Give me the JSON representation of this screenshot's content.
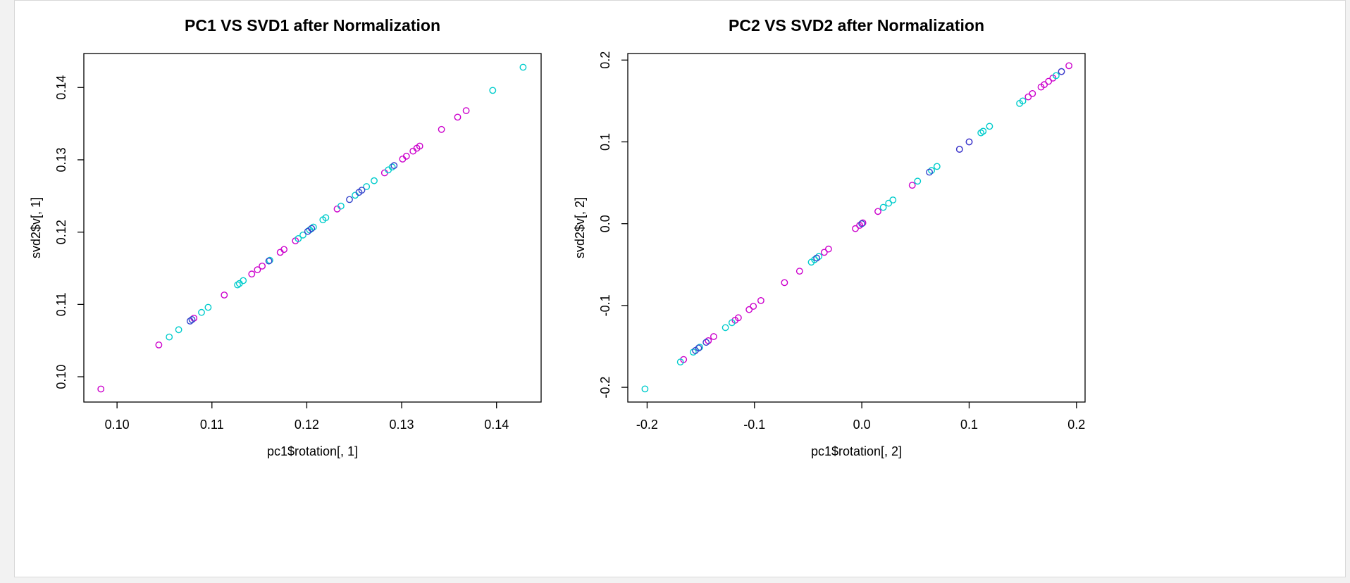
{
  "chart_data": [
    {
      "type": "scatter",
      "title": "PC1 VS SVD1 after Normalization",
      "xlabel": "pc1$rotation[, 1]",
      "ylabel": "svd2$v[, 1]",
      "xlim": [
        0.0965,
        0.1447
      ],
      "ylim": [
        0.0965,
        0.1447
      ],
      "xticks": [
        0.1,
        0.11,
        0.12,
        0.13,
        0.14
      ],
      "xtick_labels": [
        "0.10",
        "0.11",
        "0.12",
        "0.13",
        "0.14"
      ],
      "yticks": [
        0.1,
        0.11,
        0.12,
        0.13,
        0.14
      ],
      "ytick_labels": [
        "0.10",
        "0.11",
        "0.12",
        "0.13",
        "0.14"
      ],
      "grid": false,
      "marker": "open-circle",
      "series": [
        {
          "color": "#cc00cc",
          "points": [
            [
              0.0983,
              0.0983
            ],
            [
              0.1044,
              0.1044
            ],
            [
              0.1081,
              0.1081
            ],
            [
              0.1113,
              0.1113
            ],
            [
              0.1142,
              0.1142
            ],
            [
              0.1148,
              0.1148
            ],
            [
              0.1153,
              0.1153
            ],
            [
              0.1172,
              0.1172
            ],
            [
              0.1176,
              0.1176
            ],
            [
              0.1188,
              0.1188
            ],
            [
              0.1232,
              0.1232
            ],
            [
              0.1282,
              0.1282
            ],
            [
              0.1301,
              0.1301
            ],
            [
              0.1305,
              0.1305
            ],
            [
              0.1312,
              0.1312
            ],
            [
              0.1316,
              0.1316
            ],
            [
              0.1319,
              0.1319
            ],
            [
              0.1342,
              0.1342
            ],
            [
              0.1359,
              0.1359
            ],
            [
              0.1368,
              0.1368
            ]
          ]
        },
        {
          "color": "#00cccc",
          "points": [
            [
              0.1055,
              0.1055
            ],
            [
              0.1065,
              0.1065
            ],
            [
              0.1089,
              0.1089
            ],
            [
              0.1096,
              0.1096
            ],
            [
              0.1127,
              0.1127
            ],
            [
              0.1129,
              0.1129
            ],
            [
              0.1133,
              0.1133
            ],
            [
              0.1161,
              0.1161
            ],
            [
              0.1191,
              0.1191
            ],
            [
              0.1196,
              0.1196
            ],
            [
              0.1203,
              0.1203
            ],
            [
              0.1207,
              0.1207
            ],
            [
              0.1217,
              0.1217
            ],
            [
              0.122,
              0.122
            ],
            [
              0.1236,
              0.1236
            ],
            [
              0.1251,
              0.1251
            ],
            [
              0.1263,
              0.1263
            ],
            [
              0.1271,
              0.1271
            ],
            [
              0.1286,
              0.1286
            ],
            [
              0.129,
              0.129
            ],
            [
              0.1396,
              0.1396
            ],
            [
              0.1428,
              0.1428
            ]
          ]
        },
        {
          "color": "#3344cc",
          "points": [
            [
              0.1077,
              0.1077
            ],
            [
              0.1079,
              0.1079
            ],
            [
              0.116,
              0.116
            ],
            [
              0.1201,
              0.1201
            ],
            [
              0.1205,
              0.1205
            ],
            [
              0.1245,
              0.1245
            ],
            [
              0.1255,
              0.1255
            ],
            [
              0.1258,
              0.1258
            ],
            [
              0.1292,
              0.1292
            ]
          ]
        }
      ]
    },
    {
      "type": "scatter",
      "title": "PC2 VS SVD2 after Normalization",
      "xlabel": "pc1$rotation[, 2]",
      "ylabel": "svd2$v[, 2]",
      "xlim": [
        -0.218,
        0.208
      ],
      "ylim": [
        -0.218,
        0.208
      ],
      "xticks": [
        -0.2,
        -0.1,
        0.0,
        0.1,
        0.2
      ],
      "xtick_labels": [
        "-0.2",
        "-0.1",
        "0.0",
        "0.1",
        "0.2"
      ],
      "yticks": [
        -0.2,
        -0.1,
        0.0,
        0.1,
        0.2
      ],
      "ytick_labels": [
        "-0.2",
        "-0.1",
        "0.0",
        "0.1",
        "0.2"
      ],
      "grid": false,
      "marker": "open-circle",
      "series": [
        {
          "color": "#cc00cc",
          "points": [
            [
              -0.166,
              -0.166
            ],
            [
              -0.143,
              -0.143
            ],
            [
              -0.138,
              -0.138
            ],
            [
              -0.118,
              -0.118
            ],
            [
              -0.115,
              -0.115
            ],
            [
              -0.105,
              -0.105
            ],
            [
              -0.101,
              -0.101
            ],
            [
              -0.094,
              -0.094
            ],
            [
              -0.072,
              -0.072
            ],
            [
              -0.058,
              -0.058
            ],
            [
              -0.035,
              -0.035
            ],
            [
              -0.031,
              -0.031
            ],
            [
              -0.006,
              -0.006
            ],
            [
              -0.002,
              -0.002
            ],
            [
              0.001,
              0.001
            ],
            [
              0.015,
              0.015
            ],
            [
              0.047,
              0.047
            ],
            [
              0.091,
              0.091
            ],
            [
              0.1,
              0.1
            ],
            [
              0.155,
              0.155
            ],
            [
              0.159,
              0.159
            ],
            [
              0.167,
              0.167
            ],
            [
              0.17,
              0.17
            ],
            [
              0.174,
              0.174
            ],
            [
              0.178,
              0.178
            ],
            [
              0.186,
              0.186
            ],
            [
              0.193,
              0.193
            ]
          ]
        },
        {
          "color": "#00cccc",
          "points": [
            [
              -0.202,
              -0.202
            ],
            [
              -0.169,
              -0.169
            ],
            [
              -0.157,
              -0.157
            ],
            [
              -0.151,
              -0.151
            ],
            [
              -0.127,
              -0.127
            ],
            [
              -0.121,
              -0.121
            ],
            [
              -0.047,
              -0.047
            ],
            [
              -0.044,
              -0.044
            ],
            [
              -0.04,
              -0.04
            ],
            [
              0.02,
              0.02
            ],
            [
              0.025,
              0.025
            ],
            [
              0.029,
              0.029
            ],
            [
              0.052,
              0.052
            ],
            [
              0.065,
              0.065
            ],
            [
              0.07,
              0.07
            ],
            [
              0.111,
              0.111
            ],
            [
              0.113,
              0.113
            ],
            [
              0.119,
              0.119
            ],
            [
              0.147,
              0.147
            ],
            [
              0.15,
              0.15
            ],
            [
              0.181,
              0.181
            ]
          ]
        },
        {
          "color": "#3344cc",
          "points": [
            [
              -0.155,
              -0.155
            ],
            [
              -0.152,
              -0.152
            ],
            [
              -0.145,
              -0.145
            ],
            [
              -0.042,
              -0.042
            ],
            [
              0.0,
              0.0
            ],
            [
              0.063,
              0.063
            ],
            [
              0.091,
              0.091
            ],
            [
              0.1,
              0.1
            ],
            [
              0.186,
              0.186
            ]
          ]
        }
      ]
    }
  ]
}
